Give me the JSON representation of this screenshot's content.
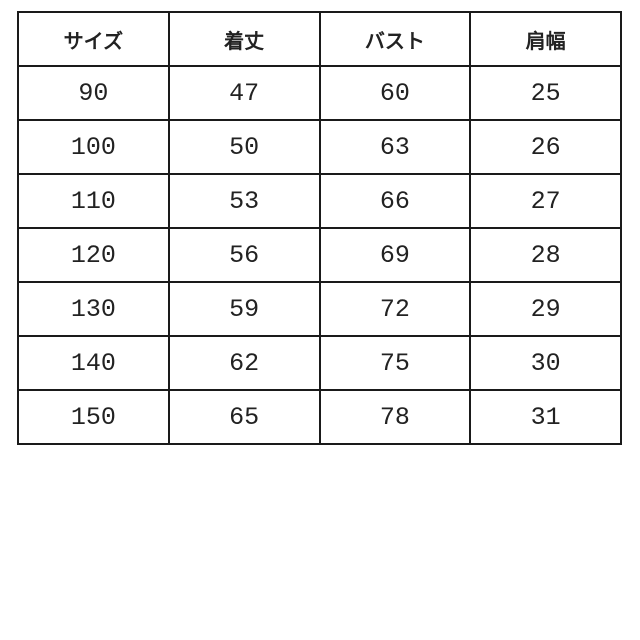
{
  "table": {
    "headers": [
      "サイズ",
      "着丈",
      "バスト",
      "肩幅"
    ],
    "rows": [
      [
        "90",
        "47",
        "60",
        "25"
      ],
      [
        "100",
        "50",
        "63",
        "26"
      ],
      [
        "110",
        "53",
        "66",
        "27"
      ],
      [
        "120",
        "56",
        "69",
        "28"
      ],
      [
        "130",
        "59",
        "72",
        "29"
      ],
      [
        "140",
        "62",
        "75",
        "30"
      ],
      [
        "150",
        "65",
        "78",
        "31"
      ]
    ]
  }
}
